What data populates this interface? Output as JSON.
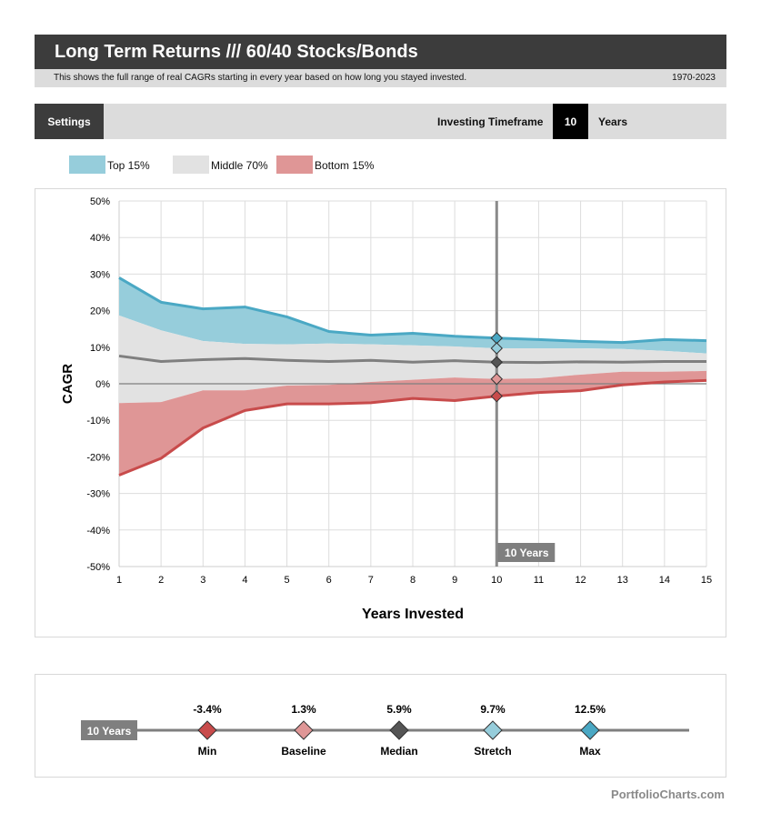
{
  "header": {
    "title": "Long Term Returns /// 60/40 Stocks/Bonds",
    "description": "This shows the full range of real CAGRs starting in every year based on how long you stayed invested.",
    "date_range": "1970-2023"
  },
  "settings": {
    "button_label": "Settings",
    "timeframe_label": "Investing Timeframe",
    "timeframe_value": "10",
    "timeframe_unit": "Years"
  },
  "legend": [
    {
      "label": "Top 15%",
      "color": "#96cddb"
    },
    {
      "label": "Middle 70%",
      "color": "#e2e2e2"
    },
    {
      "label": "Bottom 15%",
      "color": "#df9696"
    }
  ],
  "chart_data": {
    "type": "area",
    "xlabel": "Years Invested",
    "ylabel": "CAGR",
    "x": [
      1,
      2,
      3,
      4,
      5,
      6,
      7,
      8,
      9,
      10,
      11,
      12,
      13,
      14,
      15
    ],
    "xlim": [
      1,
      15
    ],
    "ylim": [
      -50,
      50
    ],
    "y_ticks": [
      -50,
      -40,
      -30,
      -20,
      -10,
      0,
      10,
      20,
      30,
      40,
      50
    ],
    "y_tick_labels": [
      "-50%",
      "-40%",
      "-30%",
      "-20%",
      "-10%",
      "0%",
      "10%",
      "20%",
      "30%",
      "40%",
      "50%"
    ],
    "grid": true,
    "series": [
      {
        "key": "max",
        "values": [
          29.0,
          22.3,
          20.5,
          21.0,
          18.3,
          14.3,
          13.3,
          13.8,
          13.0,
          12.5,
          12.1,
          11.6,
          11.3,
          12.1,
          11.8
        ],
        "color": "#4aa8c4"
      },
      {
        "key": "stretch",
        "values": [
          18.7,
          14.6,
          11.7,
          10.9,
          10.8,
          11.0,
          10.8,
          10.5,
          10.2,
          9.7,
          9.7,
          9.7,
          9.5,
          9.0,
          8.3
        ],
        "color": "#96cddb"
      },
      {
        "key": "median",
        "values": [
          7.6,
          6.1,
          6.6,
          6.9,
          6.4,
          6.1,
          6.4,
          5.9,
          6.3,
          5.9,
          5.8,
          6.0,
          5.9,
          6.1,
          6.1
        ],
        "color": "#7f7f7f"
      },
      {
        "key": "baseline",
        "values": [
          -5.3,
          -5.0,
          -1.8,
          -1.8,
          -0.5,
          -0.3,
          0.5,
          1.1,
          1.7,
          1.3,
          1.5,
          2.5,
          3.3,
          3.3,
          3.5
        ],
        "color": "#df9696"
      },
      {
        "key": "min",
        "values": [
          -25.0,
          -20.4,
          -12.1,
          -7.3,
          -5.5,
          -5.5,
          -5.2,
          -4.0,
          -4.6,
          -3.4,
          -2.4,
          -1.9,
          -0.3,
          0.5,
          0.9
        ],
        "color": "#c84b4b"
      }
    ],
    "marker": {
      "x": 10,
      "label": "10 Years"
    }
  },
  "summary": {
    "label": "10 Years",
    "items": [
      {
        "name": "Min",
        "value": "-3.4%",
        "color": "#c84b4b"
      },
      {
        "name": "Baseline",
        "value": "1.3%",
        "color": "#df9696"
      },
      {
        "name": "Median",
        "value": "5.9%",
        "color": "#555555"
      },
      {
        "name": "Stretch",
        "value": "9.7%",
        "color": "#96cddb"
      },
      {
        "name": "Max",
        "value": "12.5%",
        "color": "#4aa8c4"
      }
    ]
  },
  "footer": {
    "brand": "PortfolioCharts.com"
  }
}
